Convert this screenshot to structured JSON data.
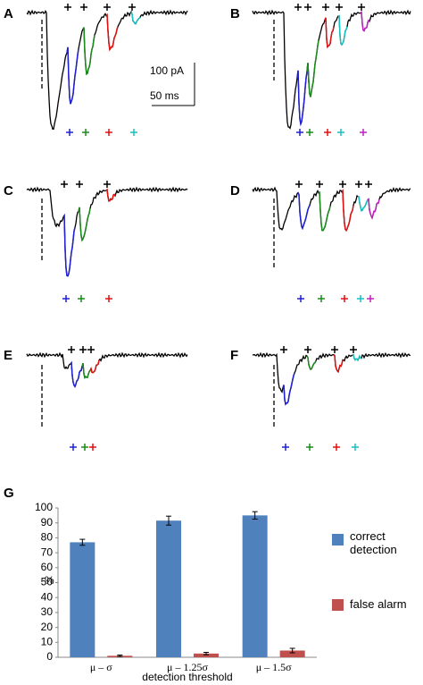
{
  "panels": {
    "labels": [
      "A",
      "B",
      "C",
      "D",
      "E",
      "F"
    ],
    "scale_current": "100 pA",
    "scale_time": "50 ms"
  },
  "chart_data": {
    "type": "bar",
    "panel_label": "G",
    "categories": [
      "μ – σ",
      "μ – 1.25σ",
      "μ – 1.5σ"
    ],
    "series": [
      {
        "name": "correct detection",
        "color": "#4f81bd",
        "values": [
          77,
          91.5,
          95
        ],
        "errors": [
          2,
          3,
          2.5
        ]
      },
      {
        "name": "false alarm",
        "color": "#c0504d",
        "values": [
          1,
          2.5,
          4.5
        ],
        "errors": [
          0.5,
          0.8,
          1.5
        ]
      }
    ],
    "ylim": [
      0,
      100
    ],
    "yticks": [
      0,
      10,
      20,
      30,
      40,
      50,
      60,
      70,
      80,
      90,
      100
    ],
    "ylabel": "%",
    "xlabel": "detection threshold",
    "legend": "right"
  }
}
